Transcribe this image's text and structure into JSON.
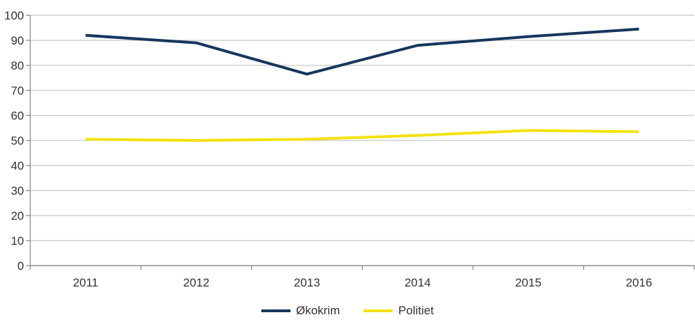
{
  "chart_data": {
    "type": "line",
    "title": "",
    "xlabel": "",
    "ylabel": "",
    "categories": [
      "2011",
      "2012",
      "2013",
      "2014",
      "2015",
      "2016"
    ],
    "series": [
      {
        "name": "Økokrim",
        "color": "#17365D",
        "values": [
          92,
          89,
          76.5,
          88,
          91.5,
          94.5
        ]
      },
      {
        "name": "Politiet",
        "color": "#F2E30E",
        "values": [
          50.5,
          50,
          50.5,
          52,
          54,
          53.5
        ]
      }
    ],
    "ylim": [
      0,
      100
    ],
    "ytick_step": 10,
    "ytick_labels": [
      "0",
      "10",
      "20",
      "30",
      "40",
      "50",
      "60",
      "70",
      "80",
      "90",
      "100"
    ],
    "grid": true,
    "legend_position": "bottom",
    "colors": {
      "gridline": "#C6C6C6",
      "axis": "#8C8C8C",
      "tick_label": "#333333",
      "background": "#FFFFFF"
    }
  }
}
